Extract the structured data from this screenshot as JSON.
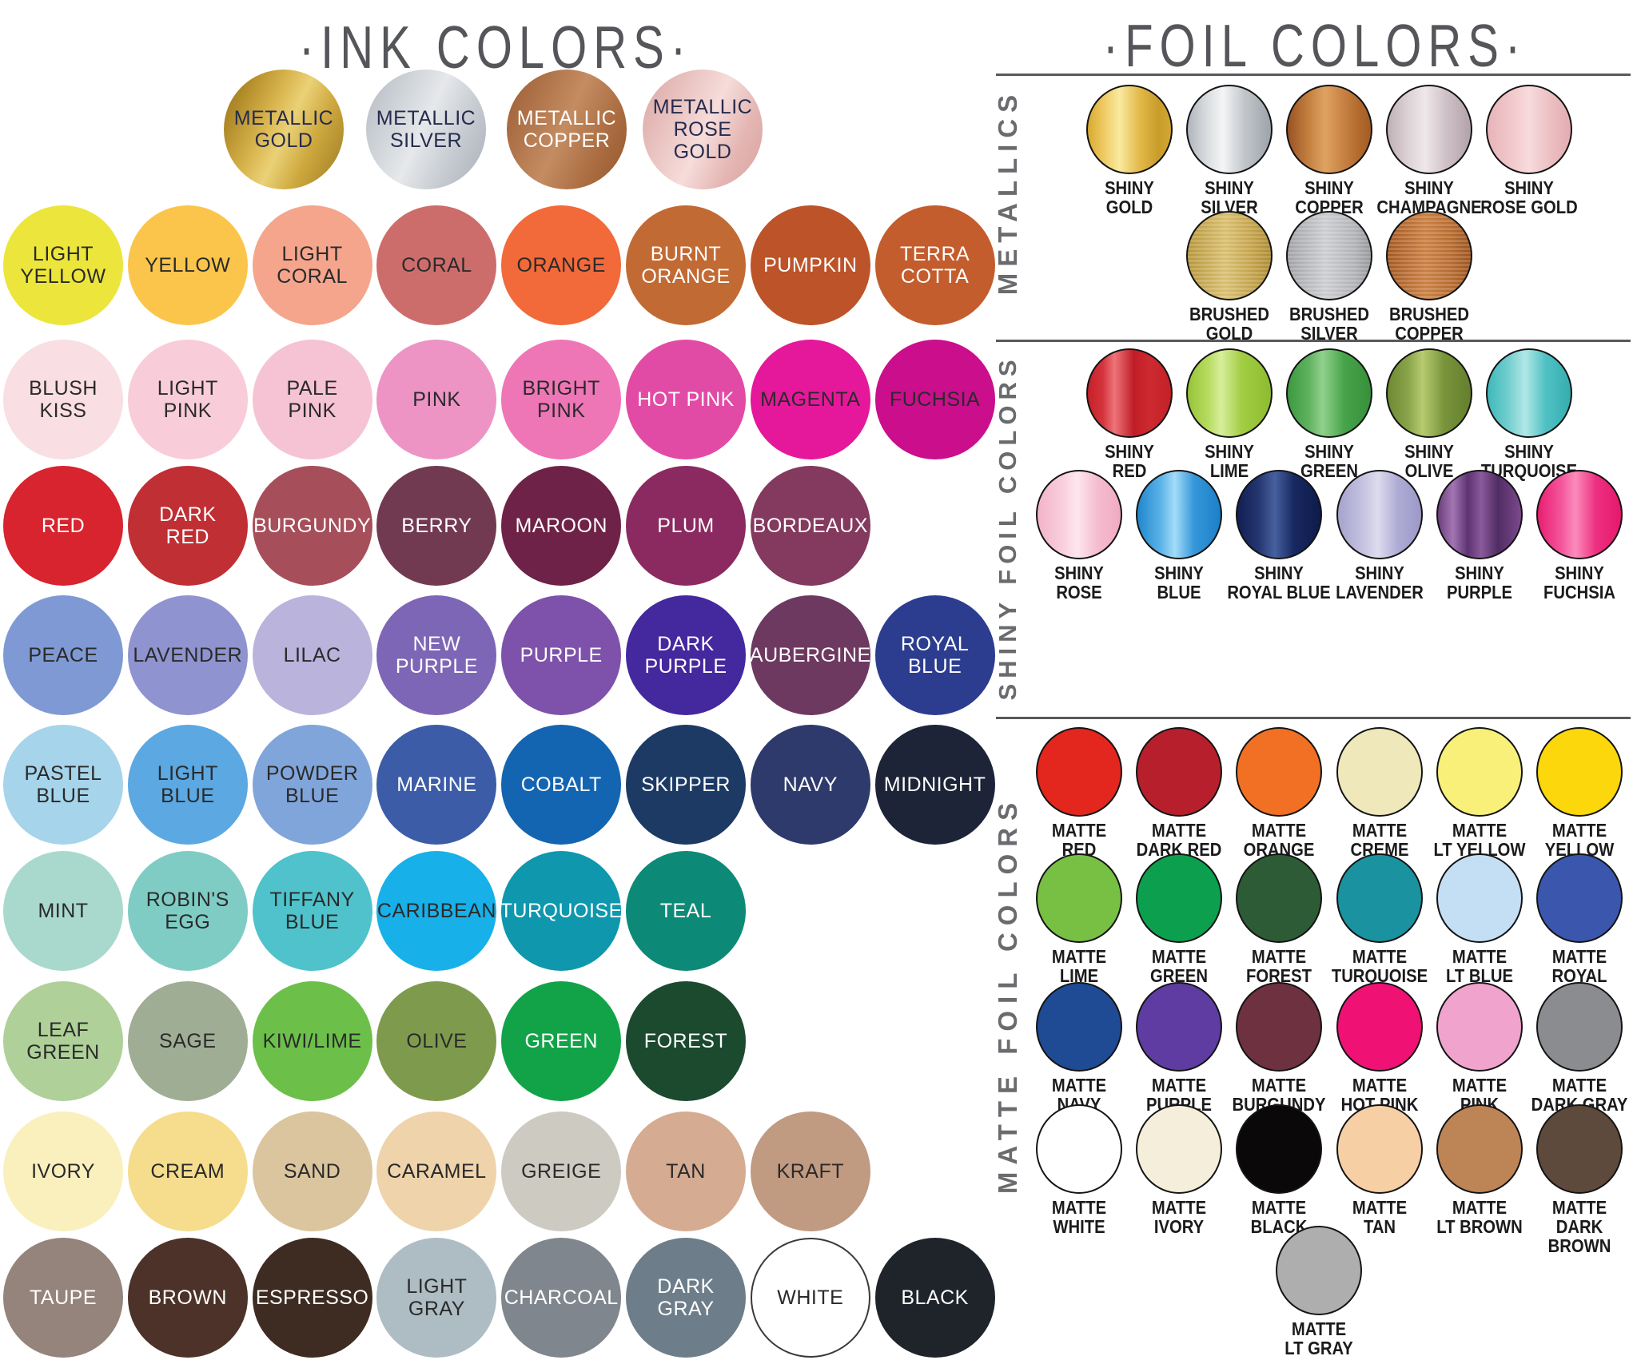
{
  "ink": {
    "title": "·INK COLORS·",
    "metallic_row": [
      {
        "label": "METALLIC\nGOLD",
        "tc": "navy",
        "bg": "linear-gradient(115deg,#8f701f 0%,#b38d2a 18%,#d9b54e 38%,#ead177 52%,#cfa93f 70%,#9a7a22 100%)"
      },
      {
        "label": "METALLIC\nSILVER",
        "tc": "navy",
        "bg": "linear-gradient(115deg,#b2b8c0 0%,#cdd2d7 25%,#e6e8ea 48%,#c6cbd1 72%,#a9afb8 100%)"
      },
      {
        "label": "METALLIC\nCOPPER",
        "tc": "light",
        "bg": "linear-gradient(115deg,#995b33 0%,#b0744a 25%,#c48c62 48%,#aa6c40 75%,#94572e 100%)"
      },
      {
        "label": "METALLIC\nROSE\nGOLD",
        "tc": "navy",
        "bg": "linear-gradient(115deg,#d8a5a3 0%,#eac5c2 30%,#f6dcda 52%,#e4b6b3 75%,#d8a2a0 100%)"
      }
    ],
    "rows": [
      [
        {
          "label": "LIGHT\nYELLOW",
          "tc": "dark",
          "bg": "#ece53c"
        },
        {
          "label": "YELLOW",
          "tc": "dark",
          "bg": "#fbc54b"
        },
        {
          "label": "LIGHT\nCORAL",
          "tc": "dark",
          "bg": "#f4a58c"
        },
        {
          "label": "CORAL",
          "tc": "dark",
          "bg": "#cd6d6b"
        },
        {
          "label": "ORANGE",
          "tc": "dark",
          "bg": "#f2693a"
        },
        {
          "label": "BURNT\nORANGE",
          "tc": "light",
          "bg": "#c26a34"
        },
        {
          "label": "PUMPKIN",
          "tc": "light",
          "bg": "#bd5328"
        },
        {
          "label": "TERRA\nCOTTA",
          "tc": "light",
          "bg": "#c35d2d"
        }
      ],
      [
        {
          "label": "BLUSH\nKISS",
          "tc": "dark",
          "bg": "#f9dee4"
        },
        {
          "label": "LIGHT\nPINK",
          "tc": "dark",
          "bg": "#f8cdd9"
        },
        {
          "label": "PALE\nPINK",
          "tc": "dark",
          "bg": "#f6c3d4"
        },
        {
          "label": "PINK",
          "tc": "dark",
          "bg": "#ed94c5"
        },
        {
          "label": "BRIGHT\nPINK",
          "tc": "dark",
          "bg": "#ee76b7"
        },
        {
          "label": "HOT PINK",
          "tc": "light",
          "bg": "#e14ba5"
        },
        {
          "label": "MAGENTA",
          "tc": "dark",
          "bg": "#e5189b"
        },
        {
          "label": "FUCHSIA",
          "tc": "dark",
          "bg": "#ca0e8c"
        }
      ],
      [
        {
          "label": "RED",
          "tc": "light",
          "bg": "#d7242e"
        },
        {
          "label": "DARK\nRED",
          "tc": "light",
          "bg": "#bf2f34"
        },
        {
          "label": "BURGUNDY",
          "tc": "light",
          "bg": "#a64e5a"
        },
        {
          "label": "BERRY",
          "tc": "light",
          "bg": "#723a50"
        },
        {
          "label": "MAROON",
          "tc": "light",
          "bg": "#6f2248"
        },
        {
          "label": "PLUM",
          "tc": "light",
          "bg": "#8b2a60"
        },
        {
          "label": "BORDEAUX",
          "tc": "light",
          "bg": "#84395e"
        }
      ],
      [
        {
          "label": "PEACE",
          "tc": "dark",
          "bg": "#7e99d4"
        },
        {
          "label": "LAVENDER",
          "tc": "dark",
          "bg": "#8f93cf"
        },
        {
          "label": "LILAC",
          "tc": "dark",
          "bg": "#bab3dc"
        },
        {
          "label": "NEW\nPURPLE",
          "tc": "light",
          "bg": "#7d66b5"
        },
        {
          "label": "PURPLE",
          "tc": "light",
          "bg": "#7e52ab"
        },
        {
          "label": "DARK\nPURPLE",
          "tc": "light",
          "bg": "#44289d"
        },
        {
          "label": "AUBERGINE",
          "tc": "light",
          "bg": "#6e3961"
        },
        {
          "label": "ROYAL\nBLUE",
          "tc": "light",
          "bg": "#2c3d90"
        }
      ],
      [
        {
          "label": "PASTEL\nBLUE",
          "tc": "dark",
          "bg": "#a6d4eb"
        },
        {
          "label": "LIGHT\nBLUE",
          "tc": "dark",
          "bg": "#5ba8e2"
        },
        {
          "label": "POWDER\nBLUE",
          "tc": "dark",
          "bg": "#80a5da"
        },
        {
          "label": "MARINE",
          "tc": "light",
          "bg": "#3c5ca7"
        },
        {
          "label": "COBALT",
          "tc": "light",
          "bg": "#1465b1"
        },
        {
          "label": "SKIPPER",
          "tc": "light",
          "bg": "#1c3a64"
        },
        {
          "label": "NAVY",
          "tc": "light",
          "bg": "#2e3a6c"
        },
        {
          "label": "MIDNIGHT",
          "tc": "light",
          "bg": "#1d2438"
        }
      ],
      [
        {
          "label": "MINT",
          "tc": "dark",
          "bg": "#a9d9cc"
        },
        {
          "label": "ROBIN'S\nEGG",
          "tc": "dark",
          "bg": "#7fccc4"
        },
        {
          "label": "TIFFANY\nBLUE",
          "tc": "dark",
          "bg": "#4fc2cb"
        },
        {
          "label": "CARIBBEAN",
          "tc": "dark",
          "bg": "#18b0e9"
        },
        {
          "label": "TURQUOISE",
          "tc": "light",
          "bg": "#0e97ad"
        },
        {
          "label": "TEAL",
          "tc": "light",
          "bg": "#0d8a77"
        }
      ],
      [
        {
          "label": "LEAF\nGREEN",
          "tc": "dark",
          "bg": "#afd099"
        },
        {
          "label": "SAGE",
          "tc": "dark",
          "bg": "#9fad94"
        },
        {
          "label": "KIWI/LIME",
          "tc": "dark",
          "bg": "#6cc04a"
        },
        {
          "label": "OLIVE",
          "tc": "dark",
          "bg": "#7e9b4d"
        },
        {
          "label": "GREEN",
          "tc": "light",
          "bg": "#12a349"
        },
        {
          "label": "FOREST",
          "tc": "light",
          "bg": "#1b4a2e"
        }
      ],
      [
        {
          "label": "IVORY",
          "tc": "dark",
          "bg": "#faf0bd"
        },
        {
          "label": "CREAM",
          "tc": "dark",
          "bg": "#f5dd8d"
        },
        {
          "label": "SAND",
          "tc": "dark",
          "bg": "#dac59e"
        },
        {
          "label": "CARAMEL",
          "tc": "dark",
          "bg": "#eed3ab"
        },
        {
          "label": "GREIGE",
          "tc": "dark",
          "bg": "#cdcac2"
        },
        {
          "label": "TAN",
          "tc": "dark",
          "bg": "#d5ab92"
        },
        {
          "label": "KRAFT",
          "tc": "dark",
          "bg": "#c09a81"
        }
      ],
      [
        {
          "label": "TAUPE",
          "tc": "light",
          "bg": "#94847c"
        },
        {
          "label": "BROWN",
          "tc": "light",
          "bg": "#4c3228"
        },
        {
          "label": "ESPRESSO",
          "tc": "light",
          "bg": "#3e2b21"
        },
        {
          "label": "LIGHT\nGRAY",
          "tc": "dark",
          "bg": "#aebcc4"
        },
        {
          "label": "CHARCOAL",
          "tc": "light",
          "bg": "#7f868d"
        },
        {
          "label": "DARK\nGRAY",
          "tc": "light",
          "bg": "#6d7e8a"
        },
        {
          "label": "WHITE",
          "tc": "dark",
          "bg": "#ffffff",
          "outline": true
        },
        {
          "label": "BLACK",
          "tc": "light",
          "bg": "#1f242b"
        }
      ]
    ]
  },
  "foil": {
    "title": "·FOIL COLORS·",
    "sections": [
      {
        "label": "METALLICS",
        "rows": [
          [
            {
              "label": "SHINY\nGOLD",
              "bg": "linear-gradient(90deg,#d8a92f 0%,#eec861 18%,#f9ea9f 38%,#e3b94a 62%,#c89c28 85%,#d3a733 100%)"
            },
            {
              "label": "SHINY\nSILVER",
              "bg": "linear-gradient(90deg,#b0b5bc 0%,#d5d8db 20%,#f4f5f6 42%,#c2c6cb 68%,#9da3aa 100%)"
            },
            {
              "label": "SHINY\nCOPPER",
              "bg": "linear-gradient(90deg,#9a5223 0%,#c3803f 25%,#e0a263 45%,#cf8c4c 60%,#b36a2e 85%,#a25c26 100%)"
            },
            {
              "label": "SHINY\nCHAMPAGNE",
              "bg": "linear-gradient(90deg,#bfb0b6 0%,#ddd2d6 25%,#efe8ea 45%,#cfc2c7 70%,#b2a2aa 100%)"
            },
            {
              "label": "SHINY\nROSE GOLD",
              "bg": "linear-gradient(90deg,#e7b4b8 0%,#f3cdd0 35%,#f7dbdd 50%,#ecc0c3 75%,#e3acb1 100%)"
            }
          ],
          [
            {
              "label": "BRUSHED\nGOLD",
              "brushed": true,
              "bg": "linear-gradient(90deg,#b9983f 0%,#dcc273 45%,#c3a24a 80%,#ae8c35 100%)"
            },
            {
              "label": "BRUSHED\nSILVER",
              "brushed": true,
              "bg": "linear-gradient(90deg,#a3a4a8 0%,#cfd0d4 45%,#b4b5b9 80%,#98999d 100%)"
            },
            {
              "label": "BRUSHED\nCOPPER",
              "brushed": true,
              "bg": "linear-gradient(90deg,#a55a24 0%,#cd8345 45%,#b96f33 75%,#9d5520 100%)"
            }
          ]
        ]
      },
      {
        "label": "SHINY FOIL COLORS",
        "rows": [
          [
            {
              "label": "SHINY\nRED",
              "bg": "linear-gradient(90deg,#c62028 0%,#d4343c 18%,#ee747a 32%,#c01e27 55%,#cd2931 75%,#c42027 100%)"
            },
            {
              "label": "SHINY\nLIME",
              "bg": "linear-gradient(90deg,#96c437 0%,#b8dc62 25%,#d7ef9b 40%,#a3cd43 65%,#8cbc2f 100%)"
            },
            {
              "label": "SHINY\nGREEN",
              "bg": "linear-gradient(90deg,#3c9a40 0%,#5fb15f 25%,#90d18c 42%,#47a44a 68%,#36903a 100%)"
            },
            {
              "label": "SHINY\nOLIVE",
              "bg": "linear-gradient(90deg,#6d8a33 0%,#8aa44a 25%,#b7cb70 42%,#79943c 68%,#647f2d 100%)"
            },
            {
              "label": "SHINY\nTURQUOISE",
              "bg": "linear-gradient(90deg,#3fb8ba 0%,#73cecf 25%,#b2e7e6 45%,#4fc1c3 70%,#35adb0 100%)"
            }
          ],
          [
            {
              "label": "SHINY\nROSE",
              "bg": "linear-gradient(90deg,#f3b3c8 0%,#f9cfdd 30%,#fde7ee 48%,#f5bdd0 72%,#f0a9c2 100%)"
            },
            {
              "label": "SHINY\nBLUE",
              "bg": "linear-gradient(90deg,#1f86cd 0%,#5cb3e8 28%,#a3dcf7 45%,#3697da 68%,#1a80c8 100%)"
            },
            {
              "label": "SHINY\nROYAL BLUE",
              "bg": "linear-gradient(90deg,#111f52 0%,#24356f 25%,#46619f 45%,#182861 68%,#0e1b4a 100%)"
            },
            {
              "label": "SHINY\nLAVENDER",
              "bg": "linear-gradient(90deg,#a5a2cd 0%,#c5c3e0 30%,#dddcee 48%,#aeabd4 72%,#9c99c8 100%)"
            },
            {
              "label": "SHINY\nPURPLE",
              "bg": "linear-gradient(90deg,#6b3d7d 0%,#a376b2 18%,#5c3370 36%,#8a5a9c 52%,#512c63 72%,#7b4a8c 100%)"
            },
            {
              "label": "SHINY\nFUCHSIA",
              "bg": "linear-gradient(90deg,#e81d71 0%,#f4559b 28%,#fb8cbb 45%,#ee2f80 70%,#e5186c 100%)"
            }
          ]
        ]
      },
      {
        "label": "MATTE FOIL COLORS",
        "rows": [
          [
            {
              "label": "MATTE\nRED",
              "bg": "#e3261e"
            },
            {
              "label": "MATTE\nDARK RED",
              "bg": "#b71f2c"
            },
            {
              "label": "MATTE\nORANGE",
              "bg": "#f17023"
            },
            {
              "label": "MATTE\nCREME",
              "bg": "#eee8ba"
            },
            {
              "label": "MATTE\nLT YELLOW",
              "bg": "#f8f078"
            },
            {
              "label": "MATTE\nYELLOW",
              "bg": "#fcd70b"
            }
          ],
          [
            {
              "label": "MATTE\nLIME",
              "bg": "#77c044"
            },
            {
              "label": "MATTE\nGREEN",
              "bg": "#0ca04e"
            },
            {
              "label": "MATTE\nFOREST",
              "bg": "#2d5b36"
            },
            {
              "label": "MATTE\nTURQUOISE",
              "bg": "#1a92a0"
            },
            {
              "label": "MATTE\nLT BLUE",
              "bg": "#c4def4"
            },
            {
              "label": "MATTE\nROYAL",
              "bg": "#3a57ad"
            }
          ],
          [
            {
              "label": "MATTE\nNAVY",
              "bg": "#1e4b94"
            },
            {
              "label": "MATTE\nPURPLE",
              "bg": "#5e3ca2"
            },
            {
              "label": "MATTE\nBURGUNDY",
              "bg": "#6e3140"
            },
            {
              "label": "MATTE\nHOT PINK",
              "bg": "#f01175"
            },
            {
              "label": "MATTE\nPINK",
              "bg": "#efa3cd"
            },
            {
              "label": "MATTE\nDARK GRAY",
              "bg": "#8a8c8f"
            }
          ],
          [
            {
              "label": "MATTE\nWHITE",
              "bg": "#ffffff"
            },
            {
              "label": "MATTE\nIVORY",
              "bg": "#f4eeda"
            },
            {
              "label": "MATTE\nBLACK",
              "bg": "#0a0809"
            },
            {
              "label": "MATTE\nTAN",
              "bg": "#f7cfa5"
            },
            {
              "label": "MATTE\nLT BROWN",
              "bg": "#bd8455"
            },
            {
              "label": "MATTE\nDARK BROWN",
              "bg": "#5e4a3c"
            }
          ],
          [
            {
              "label": "MATTE\nLT GRAY",
              "bg": "#aeaeae"
            }
          ]
        ]
      }
    ]
  },
  "colors": {
    "title_gray": "#55565a",
    "section_gray": "#6a6b6e",
    "divider_gray": "#58595b",
    "foil_outline": "#141414"
  }
}
